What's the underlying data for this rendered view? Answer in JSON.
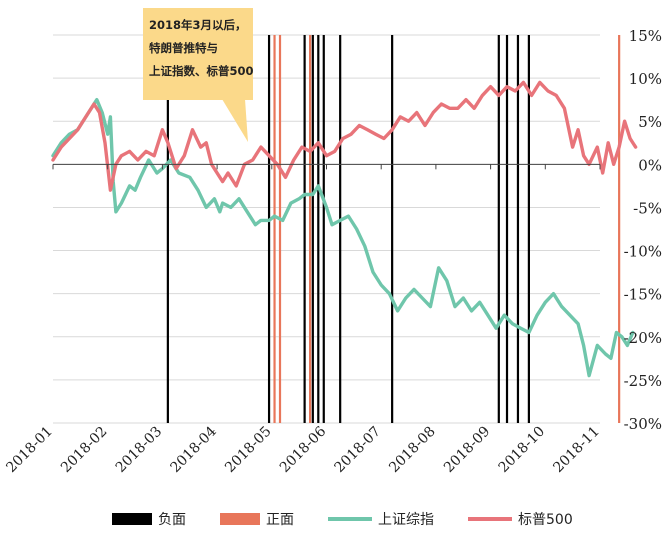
{
  "callout": {
    "lines": [
      "2018年3月以后，",
      "特朗普推特与",
      "上证指数、标普500"
    ]
  },
  "legend": {
    "negative": "负面",
    "positive": "正面",
    "sse": "上证综指",
    "sp500": "标普500"
  },
  "colors": {
    "negative": "#000000",
    "positive": "#e8765a",
    "sse": "#6fc6ab",
    "sp500": "#e8747a",
    "grid": "#d9d9d9",
    "callout": "#fbd98a"
  },
  "chart_data": {
    "type": "line",
    "x_ticks": [
      "2018-01",
      "2018-02",
      "2018-03",
      "2018-04",
      "2018-05",
      "2018-06",
      "2018-07",
      "2018-08",
      "2018-09",
      "2018-10",
      "2018-11"
    ],
    "y_ticks": [
      "15%",
      "10%",
      "5%",
      "0%",
      "-5%",
      "-10%",
      "-15%",
      "-20%",
      "-25%",
      "-30%"
    ],
    "ylim": [
      -30,
      15
    ],
    "xlim": [
      0,
      10.65
    ],
    "grid": true,
    "legend_position": "bottom",
    "series": [
      {
        "name": "上证综指",
        "color": "#6fc6ab",
        "x": [
          0,
          0.15,
          0.3,
          0.45,
          0.6,
          0.8,
          0.9,
          1.0,
          1.05,
          1.1,
          1.15,
          1.25,
          1.4,
          1.5,
          1.6,
          1.75,
          1.9,
          2.0,
          2.15,
          2.3,
          2.5,
          2.65,
          2.8,
          2.95,
          3.05,
          3.1,
          3.25,
          3.4,
          3.55,
          3.7,
          3.8,
          3.95,
          4.05,
          4.2,
          4.35,
          4.5,
          4.6,
          4.75,
          4.85,
          5.0,
          5.1,
          5.25,
          5.4,
          5.55,
          5.7,
          5.85,
          6.0,
          6.15,
          6.3,
          6.45,
          6.6,
          6.75,
          6.9,
          7.05,
          7.2,
          7.35,
          7.5,
          7.65,
          7.8,
          7.95,
          8.1,
          8.25,
          8.4,
          8.55,
          8.7,
          8.85,
          9.0,
          9.15,
          9.3,
          9.45,
          9.6,
          9.7,
          9.8,
          9.95,
          10.1,
          10.2,
          10.3,
          10.4,
          10.5,
          10.6
        ],
        "values": [
          1,
          2.5,
          3.5,
          4,
          5.5,
          7.5,
          6,
          3.5,
          5.5,
          -2,
          -5.5,
          -4.5,
          -2.5,
          -3,
          -1.5,
          0.5,
          -1,
          -0.5,
          0.5,
          -1,
          -1.5,
          -3,
          -5,
          -4,
          -5.5,
          -4.5,
          -5,
          -4,
          -5.5,
          -7,
          -6.5,
          -6.5,
          -6,
          -6.5,
          -4.5,
          -4,
          -3.5,
          -3.5,
          -2.5,
          -5,
          -7,
          -6.5,
          -6,
          -7.5,
          -9.5,
          -12.5,
          -14,
          -15,
          -17,
          -15.5,
          -14.5,
          -15.5,
          -16.5,
          -12,
          -13.5,
          -16.5,
          -15.5,
          -17,
          -16,
          -17.5,
          -19,
          -17.5,
          -18.5,
          -19,
          -19.5,
          -17.5,
          -16,
          -15,
          -16.5,
          -17.5,
          -18.5,
          -21,
          -24.5,
          -21,
          -22,
          -22.5,
          -19.5,
          -20,
          -21,
          -19.5
        ]
      },
      {
        "name": "标普500",
        "color": "#e8747a",
        "x": [
          0,
          0.15,
          0.3,
          0.45,
          0.6,
          0.75,
          0.85,
          0.95,
          1.05,
          1.15,
          1.25,
          1.4,
          1.55,
          1.7,
          1.85,
          2.0,
          2.1,
          2.25,
          2.4,
          2.55,
          2.7,
          2.8,
          2.9,
          3.0,
          3.1,
          3.2,
          3.35,
          3.5,
          3.65,
          3.8,
          3.95,
          4.1,
          4.25,
          4.4,
          4.55,
          4.7,
          4.85,
          5.0,
          5.15,
          5.3,
          5.45,
          5.6,
          5.75,
          5.9,
          6.05,
          6.2,
          6.35,
          6.5,
          6.65,
          6.8,
          6.95,
          7.1,
          7.25,
          7.4,
          7.55,
          7.7,
          7.85,
          8.0,
          8.15,
          8.3,
          8.45,
          8.6,
          8.75,
          8.9,
          9.05,
          9.2,
          9.35,
          9.5,
          9.6,
          9.7,
          9.8,
          9.95,
          10.05,
          10.15,
          10.25,
          10.35,
          10.45,
          10.55,
          10.65
        ],
        "values": [
          0.5,
          2,
          3,
          4,
          5.5,
          7,
          6,
          2.5,
          -3,
          0,
          1,
          1.5,
          0.5,
          1.5,
          1,
          4,
          2.5,
          -0.5,
          1,
          4,
          2,
          2.5,
          0,
          -1,
          -2,
          -1,
          -2.5,
          0,
          0.5,
          2,
          1,
          0,
          -1.5,
          0.5,
          2,
          1.5,
          2.5,
          1,
          1.5,
          3,
          3.5,
          4.5,
          4,
          3.5,
          3,
          4,
          5.5,
          5,
          6,
          4.5,
          6,
          7,
          6.5,
          6.5,
          7.5,
          6.5,
          8,
          9,
          8,
          9,
          8.5,
          9.5,
          8,
          9.5,
          8.5,
          8,
          6.5,
          2,
          4,
          1,
          0,
          2,
          -1,
          2.5,
          0,
          2,
          5,
          3,
          2
        ]
      }
    ],
    "tweet_markers": {
      "负面": [
        2.1,
        3.95,
        4.6,
        4.75,
        4.85,
        4.95,
        5.25,
        6.2,
        8.15,
        8.3,
        8.5,
        8.7
      ],
      "正面": [
        4.05,
        4.15,
        4.7,
        10.35
      ]
    }
  }
}
